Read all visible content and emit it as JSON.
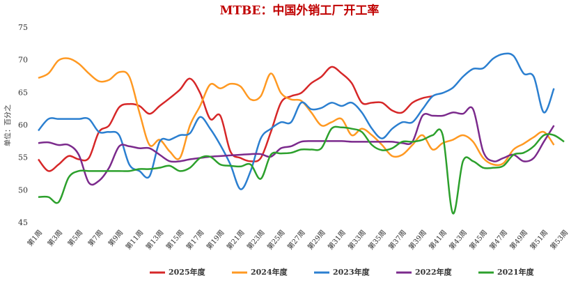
{
  "chart_data": {
    "type": "line",
    "title": "MTBE：中国外销工厂开工率",
    "y_label": "单位：百分之",
    "categories": [
      "第1周",
      null,
      "第3周",
      null,
      "第5周",
      null,
      "第7周",
      null,
      "第9周",
      null,
      "第11周",
      null,
      "第13周",
      null,
      "第15周",
      null,
      "第17周",
      null,
      "第19周",
      null,
      "第21周",
      null,
      "第23周",
      null,
      "第25周",
      null,
      "第27周",
      null,
      "第29周",
      null,
      "第31周",
      null,
      "第33周",
      null,
      "第35周",
      null,
      "第37周",
      null,
      "第39周",
      null,
      "第41周",
      null,
      "第43周",
      null,
      "第45周",
      null,
      "第47周",
      null,
      "第49周",
      null,
      "第51周",
      null,
      "第53周"
    ],
    "ylim": [
      45,
      75
    ],
    "yticks": [
      45,
      50,
      55,
      60,
      65,
      70,
      75
    ],
    "smooth": true,
    "series": [
      {
        "name": "2025年度",
        "color": "#d62728",
        "values": [
          54.8,
          53,
          54,
          55.3,
          54.8,
          55,
          59,
          60,
          62.8,
          63.3,
          63,
          61.8,
          63,
          64.2,
          65.5,
          67.2,
          65,
          61,
          61.5,
          56,
          55,
          54.5,
          55,
          59,
          63.5,
          64.5,
          65,
          66.5,
          67.5,
          69,
          68,
          66.5,
          63.5,
          63.5,
          63.5,
          62.3,
          62,
          63.5,
          64.2,
          64.5,
          null,
          null,
          null,
          null,
          null,
          null,
          null,
          null,
          null,
          null,
          null,
          null,
          null
        ]
      },
      {
        "name": "2024年度",
        "color": "#ff9922",
        "values": [
          67.3,
          68,
          70,
          70.3,
          69.5,
          68,
          66.8,
          67,
          68.2,
          67.5,
          62,
          57,
          57.8,
          56,
          55,
          60,
          63,
          66.3,
          65.7,
          66.4,
          66,
          64,
          64.5,
          68,
          65,
          64,
          63.8,
          62,
          60,
          60.5,
          61,
          58.5,
          59.5,
          58.5,
          57,
          55.3,
          55.5,
          57,
          58.5,
          56.3,
          57.3,
          57.8,
          58.5,
          57.5,
          55,
          54,
          54.2,
          56.3,
          57.2,
          58.2,
          59,
          57,
          null
        ]
      },
      {
        "name": "2023年度",
        "color": "#2b7fd0",
        "values": [
          59.2,
          61,
          61,
          61,
          61,
          61,
          59,
          59,
          58.5,
          54,
          53,
          52.2,
          57.5,
          57.8,
          58.5,
          58.8,
          61.3,
          59.5,
          57,
          54,
          50.2,
          53,
          58,
          59.5,
          60.5,
          60.5,
          63.5,
          62.5,
          62.7,
          63.5,
          63,
          63.5,
          62,
          59.5,
          58,
          59.5,
          60.5,
          60.5,
          62.5,
          64.5,
          65,
          65.8,
          67.5,
          68.7,
          68.8,
          70.3,
          71,
          70.7,
          68,
          67.5,
          62,
          65.7,
          null
        ]
      },
      {
        "name": "2022年度",
        "color": "#7b2a8c",
        "values": [
          57.3,
          57.4,
          57,
          57,
          55.5,
          51.2,
          51.5,
          53.5,
          56.8,
          56.8,
          56.5,
          56.5,
          55.5,
          54.5,
          54.5,
          54.8,
          55,
          55.2,
          55.3,
          55.4,
          55.5,
          55.6,
          55.6,
          55.2,
          56.5,
          56.8,
          57.5,
          57.6,
          57.6,
          57.6,
          57.6,
          57.5,
          57.5,
          57.5,
          57.5,
          57.5,
          57.3,
          57.5,
          61.5,
          61.5,
          61.5,
          62,
          61.8,
          62.5,
          56,
          54.5,
          55,
          55.5,
          54.5,
          55,
          57.5,
          60,
          null
        ]
      },
      {
        "name": "2021年度",
        "color": "#2ca02c",
        "values": [
          49,
          49,
          48.2,
          52,
          53,
          53,
          53,
          53,
          53,
          53,
          53.3,
          53.3,
          53.5,
          53.8,
          53,
          53.5,
          55,
          55.2,
          54,
          53.8,
          53.7,
          54,
          51.8,
          55.5,
          55.7,
          55.8,
          56.3,
          56.3,
          56.5,
          59.5,
          59.7,
          59.5,
          59,
          57,
          56.2,
          56.5,
          57.5,
          57.5,
          57.8,
          58.5,
          58.5,
          46.5,
          54.5,
          54.5,
          53.5,
          53.5,
          53.8,
          55.5,
          55.8,
          56.8,
          58.5,
          58.5,
          57.5
        ]
      }
    ]
  }
}
